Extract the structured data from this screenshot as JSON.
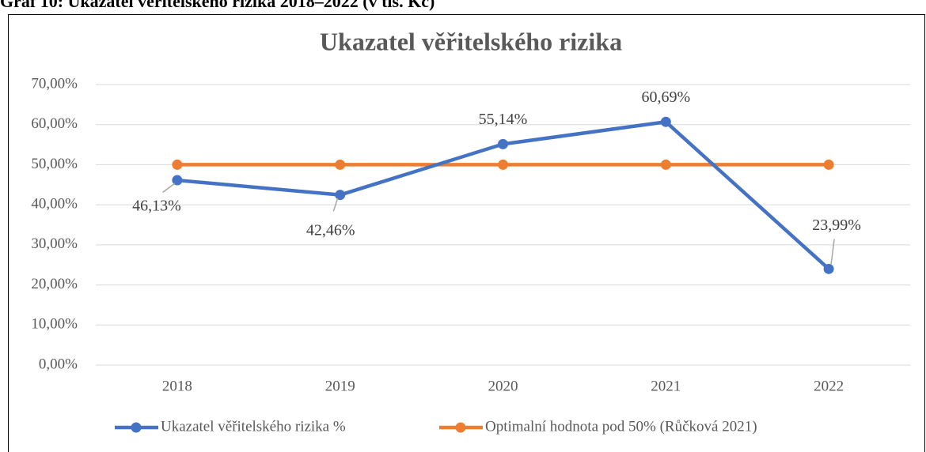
{
  "caption": "Graf 10: Ukazatel věřitelského rizika 2018–2022 (v tis. Kč)",
  "chart_data": {
    "type": "line",
    "title": "Ukazatel věřitelského rizika",
    "categories": [
      "2018",
      "2019",
      "2020",
      "2021",
      "2022"
    ],
    "series": [
      {
        "name": "Ukazatel věřitelského rizika %",
        "color": "#4472c4",
        "values": [
          46.13,
          42.46,
          55.14,
          60.69,
          23.99
        ],
        "value_labels": [
          "46,13%",
          "42,46%",
          "55,14%",
          "60,69%",
          "23,99%"
        ]
      },
      {
        "name": "Optimalní hodnota pod 50% (Růčková 2021)",
        "color": "#ed7d31",
        "values": [
          50,
          50,
          50,
          50,
          50
        ]
      }
    ],
    "ylim": [
      0,
      70
    ],
    "yticks": [
      {
        "value": 0,
        "label": "0,00%"
      },
      {
        "value": 10,
        "label": "10,00%"
      },
      {
        "value": 20,
        "label": "20,00%"
      },
      {
        "value": 30,
        "label": "30,00%"
      },
      {
        "value": 40,
        "label": "40,00%"
      },
      {
        "value": 50,
        "label": "50,00%"
      },
      {
        "value": 60,
        "label": "60,00%"
      },
      {
        "value": 70,
        "label": "70,00%"
      }
    ],
    "grid": true,
    "legend": "bottom"
  }
}
